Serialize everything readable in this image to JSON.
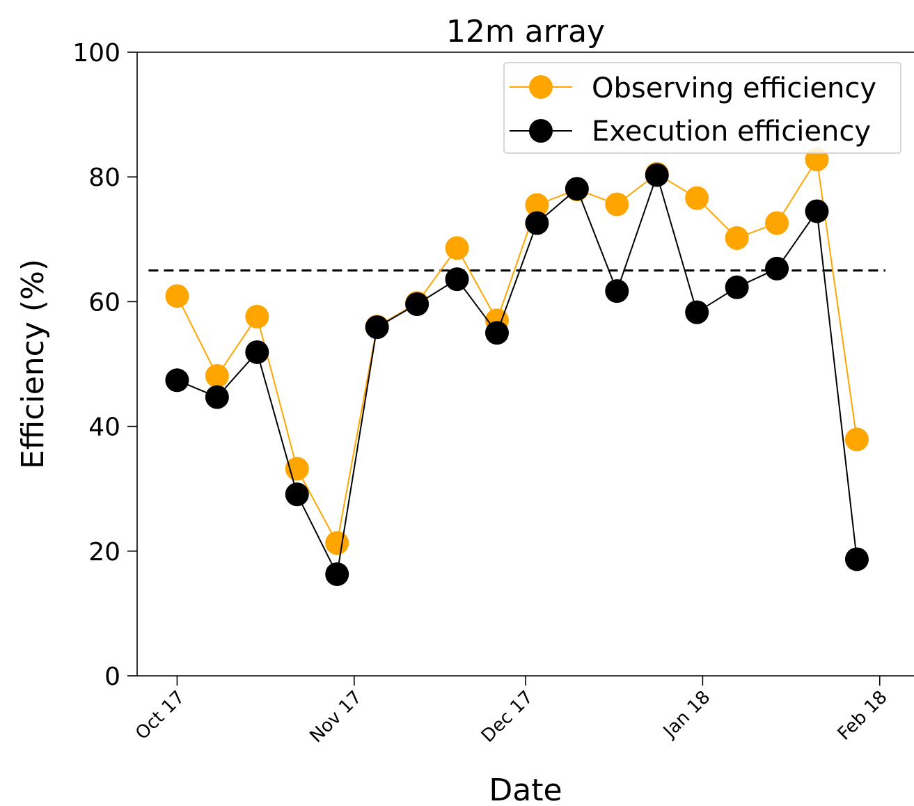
{
  "chart_data": {
    "type": "line",
    "title": "12m array",
    "xlabel": "Date",
    "ylabel": "Efficiency (%)",
    "ylim": [
      0,
      100
    ],
    "yticks": [
      0,
      20,
      40,
      60,
      80,
      100
    ],
    "xlim": [
      "2017-09-24",
      "2018-02-07"
    ],
    "xticks": [
      {
        "date": "2017-10-01",
        "label": "Oct 17"
      },
      {
        "date": "2017-11-01",
        "label": "Nov 17"
      },
      {
        "date": "2017-12-01",
        "label": "Dec 17"
      },
      {
        "date": "2018-01-01",
        "label": "Jan 18"
      },
      {
        "date": "2018-02-01",
        "label": "Feb 18"
      }
    ],
    "x": [
      "2017-10-01",
      "2017-10-08",
      "2017-10-15",
      "2017-10-22",
      "2017-10-29",
      "2017-11-05",
      "2017-11-12",
      "2017-11-19",
      "2017-11-26",
      "2017-12-03",
      "2017-12-10",
      "2017-12-17",
      "2017-12-24",
      "2017-12-31",
      "2018-01-07",
      "2018-01-14",
      "2018-01-21",
      "2018-01-28"
    ],
    "series": [
      {
        "name": "Observing efficiency",
        "color": "#ffa500",
        "values": [
          60.9,
          48.1,
          57.6,
          33.2,
          21.3,
          56.0,
          59.8,
          68.6,
          57.0,
          75.5,
          78.0,
          75.6,
          80.5,
          76.6,
          70.2,
          72.6,
          82.8,
          37.9
        ]
      },
      {
        "name": "Execution efficiency",
        "color": "#000000",
        "values": [
          47.4,
          44.7,
          51.9,
          29.1,
          16.3,
          55.9,
          59.6,
          63.6,
          55.0,
          72.6,
          78.1,
          61.7,
          80.3,
          58.3,
          62.3,
          65.3,
          74.5,
          18.7
        ]
      }
    ],
    "reference_line": {
      "y": 65,
      "style": "dashed",
      "color": "#000000"
    },
    "legend": {
      "position": "upper-right",
      "entries": [
        "Observing efficiency",
        "Execution efficiency"
      ]
    },
    "grid": false
  }
}
